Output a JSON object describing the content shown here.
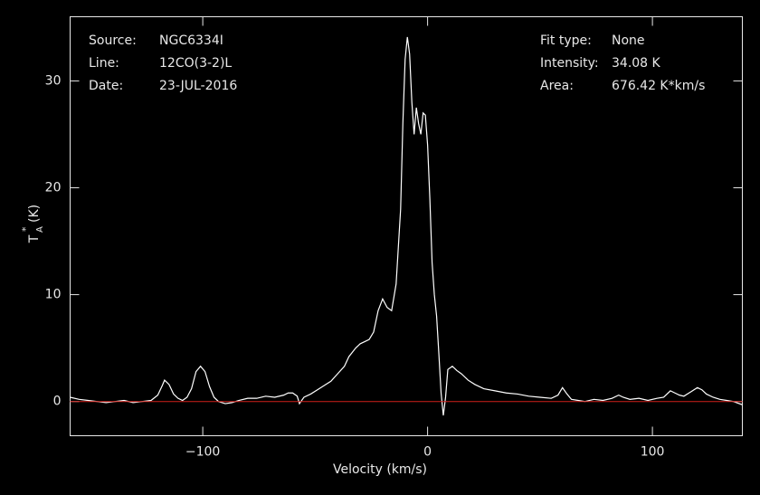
{
  "chart_data": {
    "type": "line",
    "info_left": [
      [
        "Source:",
        "NGC6334I"
      ],
      [
        "Line:",
        "12CO(3-2)L"
      ],
      [
        "Date:",
        "23-JUL-2016"
      ]
    ],
    "info_right": [
      [
        "Fit type:",
        "None"
      ],
      [
        "Intensity:",
        "34.08 K"
      ],
      [
        "Area:",
        "676.42 K*km/s"
      ]
    ],
    "x_label": "Velocity (km/s)",
    "y_label": {
      "symbol": "T",
      "superscript": "*",
      "subscript": "A",
      "unit": "(K)"
    },
    "xlim": [
      -159,
      140
    ],
    "ylim": [
      -3.2,
      36
    ],
    "xticks": [
      {
        "value": -100,
        "label": "−100"
      },
      0,
      100
    ],
    "yticks": [
      0,
      10,
      20,
      30
    ],
    "baseline": {
      "value": 0,
      "color": "#d0201a"
    },
    "series": [
      {
        "name": "NGC6334I",
        "color": "#ffffff",
        "x": [
          -159,
          -155,
          -151,
          -147,
          -143,
          -139,
          -135,
          -131,
          -127,
          -123,
          -120,
          -118,
          -117,
          -115,
          -113,
          -111,
          -109,
          -107,
          -105,
          -103,
          -101,
          -99,
          -97,
          -95,
          -93,
          -90,
          -87,
          -84,
          -80,
          -76,
          -72,
          -68,
          -64,
          -62,
          -60,
          -58,
          -57,
          -55,
          -52,
          -49,
          -46,
          -43,
          -40,
          -37,
          -35,
          -32,
          -30,
          -28,
          -26,
          -24,
          -22,
          -20,
          -18,
          -16,
          -14,
          -12,
          -11,
          -10,
          -9,
          -8,
          -7,
          -6,
          -5,
          -4,
          -3,
          -2,
          -1,
          0,
          1,
          2,
          3,
          4,
          5,
          6,
          7,
          8,
          9,
          11,
          13,
          15,
          18,
          21,
          25,
          30,
          35,
          40,
          45,
          50,
          55,
          58,
          60,
          62,
          64,
          67,
          70,
          74,
          78,
          82,
          85,
          87,
          90,
          94,
          98,
          102,
          105,
          108,
          110,
          112,
          114,
          117,
          120,
          122,
          124,
          127,
          130,
          133,
          136,
          140
        ],
        "values": [
          0.4,
          0.2,
          0.1,
          0.0,
          -0.1,
          0.0,
          0.1,
          -0.1,
          0.0,
          0.1,
          0.6,
          1.5,
          2.0,
          1.6,
          0.7,
          0.3,
          0.1,
          0.4,
          1.2,
          2.8,
          3.3,
          2.8,
          1.4,
          0.4,
          0.0,
          -0.2,
          -0.1,
          0.1,
          0.3,
          0.3,
          0.5,
          0.4,
          0.6,
          0.8,
          0.8,
          0.5,
          -0.2,
          0.4,
          0.7,
          1.1,
          1.5,
          1.9,
          2.6,
          3.3,
          4.2,
          5.0,
          5.4,
          5.6,
          5.8,
          6.5,
          8.5,
          9.6,
          8.8,
          8.5,
          11.0,
          18.0,
          26.0,
          32.0,
          34.1,
          32.5,
          28.0,
          25.0,
          27.5,
          26.0,
          25.0,
          27.0,
          26.8,
          24.0,
          19.0,
          13.0,
          10.0,
          8.0,
          4.5,
          0.8,
          -1.3,
          0.4,
          3.0,
          3.3,
          2.9,
          2.6,
          2.0,
          1.6,
          1.2,
          1.0,
          0.8,
          0.7,
          0.5,
          0.4,
          0.3,
          0.6,
          1.3,
          0.7,
          0.2,
          0.1,
          0.0,
          0.2,
          0.1,
          0.3,
          0.6,
          0.4,
          0.2,
          0.3,
          0.1,
          0.3,
          0.4,
          1.0,
          0.8,
          0.6,
          0.5,
          0.9,
          1.3,
          1.1,
          0.7,
          0.4,
          0.2,
          0.1,
          0.0,
          -0.3
        ]
      }
    ]
  }
}
